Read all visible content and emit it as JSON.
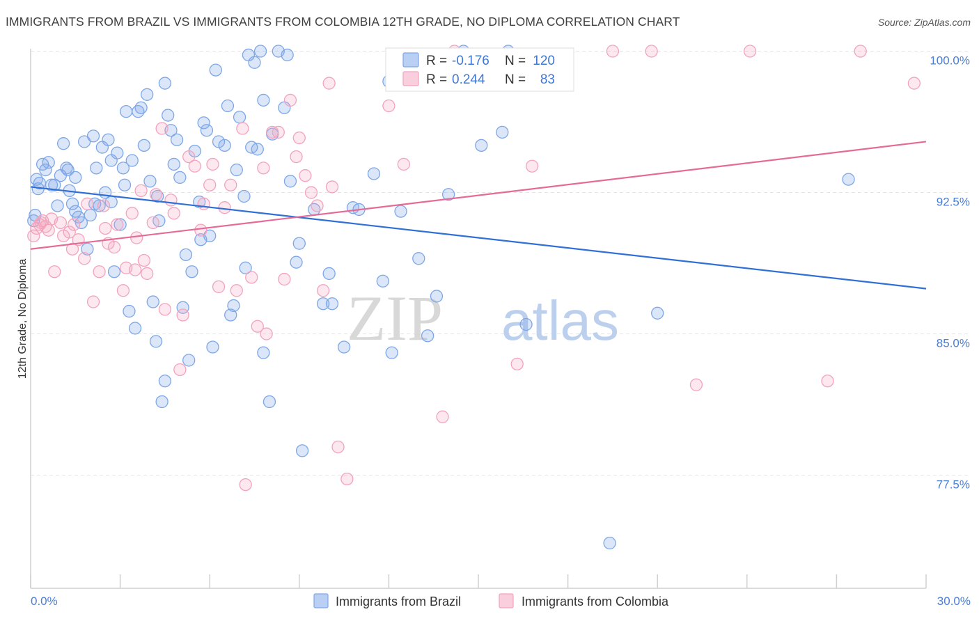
{
  "title": "IMMIGRANTS FROM BRAZIL VS IMMIGRANTS FROM COLOMBIA 12TH GRADE, NO DIPLOMA CORRELATION CHART",
  "source": "Source: ZipAtlas.com",
  "watermark": {
    "zip": "ZIP",
    "atlas": "atlas"
  },
  "legend": {
    "r_label": "R =",
    "n_label": "N =",
    "rows": [
      {
        "r": "-0.176",
        "n": "120",
        "color": "#7da7e8"
      },
      {
        "r": "0.244",
        "n": "83",
        "color": "#f2a3bd"
      }
    ]
  },
  "bottom_legend": [
    {
      "label": "Immigrants from Brazil",
      "color": "#7da7e8"
    },
    {
      "label": "Immigrants from Colombia",
      "color": "#f2a3bd"
    }
  ],
  "chart_data": {
    "type": "scatter",
    "title": "IMMIGRANTS FROM BRAZIL VS IMMIGRANTS FROM COLOMBIA 12TH GRADE, NO DIPLOMA CORRELATION CHART",
    "xlabel": "",
    "ylabel": "12th Grade, No Diploma",
    "xlim": [
      0,
      30
    ],
    "ylim": [
      71.5,
      100.5
    ],
    "x_tick_labels": [
      "0.0%",
      "30.0%"
    ],
    "y_ticks": [
      77.5,
      85.0,
      92.5,
      100.0
    ],
    "y_tick_labels": [
      "77.5%",
      "85.0%",
      "92.5%",
      "100.0%"
    ],
    "grid": true,
    "series": [
      {
        "name": "Immigrants from Brazil",
        "color": "#7da7e8",
        "trend": {
          "x": [
            0,
            30
          ],
          "y": [
            92.8,
            87.4
          ]
        },
        "points": [
          [
            0.1,
            91.0
          ],
          [
            0.2,
            93.2
          ],
          [
            0.3,
            93.0
          ],
          [
            0.4,
            94.0
          ],
          [
            0.5,
            93.7
          ],
          [
            0.6,
            94.1
          ],
          [
            0.7,
            92.9
          ],
          [
            0.8,
            92.9
          ],
          [
            0.9,
            91.8
          ],
          [
            1.0,
            93.4
          ],
          [
            1.1,
            95.1
          ],
          [
            1.2,
            93.8
          ],
          [
            1.3,
            92.6
          ],
          [
            1.4,
            91.9
          ],
          [
            1.5,
            91.5
          ],
          [
            1.5,
            93.3
          ],
          [
            1.6,
            91.2
          ],
          [
            1.7,
            90.9
          ],
          [
            1.8,
            95.2
          ],
          [
            1.9,
            89.5
          ],
          [
            2.0,
            91.3
          ],
          [
            2.1,
            95.5
          ],
          [
            2.2,
            93.8
          ],
          [
            2.3,
            91.8
          ],
          [
            2.4,
            94.9
          ],
          [
            2.5,
            92.5
          ],
          [
            2.6,
            95.3
          ],
          [
            2.7,
            92.0
          ],
          [
            2.7,
            94.2
          ],
          [
            2.8,
            88.3
          ],
          [
            2.9,
            94.6
          ],
          [
            3.0,
            90.8
          ],
          [
            3.1,
            93.8
          ],
          [
            3.2,
            96.8
          ],
          [
            3.3,
            86.2
          ],
          [
            3.4,
            94.2
          ],
          [
            3.5,
            85.3
          ],
          [
            3.6,
            96.8
          ],
          [
            3.7,
            97.0
          ],
          [
            3.8,
            95.0
          ],
          [
            3.9,
            97.7
          ],
          [
            4.0,
            93.1
          ],
          [
            4.1,
            86.7
          ],
          [
            4.2,
            84.6
          ],
          [
            4.3,
            91.0
          ],
          [
            4.4,
            81.4
          ],
          [
            4.5,
            82.5
          ],
          [
            4.5,
            98.3
          ],
          [
            4.6,
            96.6
          ],
          [
            4.7,
            95.8
          ],
          [
            4.8,
            94.0
          ],
          [
            4.9,
            95.3
          ],
          [
            5.0,
            93.3
          ],
          [
            5.1,
            86.4
          ],
          [
            5.2,
            89.2
          ],
          [
            5.3,
            83.6
          ],
          [
            5.4,
            88.3
          ],
          [
            5.5,
            94.7
          ],
          [
            5.7,
            90.0
          ],
          [
            5.8,
            96.2
          ],
          [
            5.9,
            95.8
          ],
          [
            6.0,
            90.2
          ],
          [
            6.1,
            84.3
          ],
          [
            6.2,
            99.0
          ],
          [
            6.3,
            95.2
          ],
          [
            6.5,
            95.0
          ],
          [
            6.6,
            97.1
          ],
          [
            6.7,
            86.0
          ],
          [
            6.8,
            86.5
          ],
          [
            6.9,
            93.7
          ],
          [
            7.0,
            96.5
          ],
          [
            7.2,
            88.5
          ],
          [
            7.3,
            99.8
          ],
          [
            7.4,
            94.9
          ],
          [
            7.5,
            99.4
          ],
          [
            7.6,
            94.8
          ],
          [
            7.7,
            100.0
          ],
          [
            7.8,
            84.0
          ],
          [
            7.8,
            97.4
          ],
          [
            8.0,
            81.4
          ],
          [
            8.1,
            95.6
          ],
          [
            8.3,
            100.0
          ],
          [
            8.5,
            97.0
          ],
          [
            8.6,
            99.8
          ],
          [
            8.7,
            93.1
          ],
          [
            8.9,
            88.8
          ],
          [
            9.0,
            89.8
          ],
          [
            9.1,
            78.8
          ],
          [
            9.5,
            91.6
          ],
          [
            9.8,
            86.6
          ],
          [
            10.0,
            88.2
          ],
          [
            10.1,
            86.6
          ],
          [
            10.5,
            84.3
          ],
          [
            10.8,
            91.7
          ],
          [
            11.0,
            91.6
          ],
          [
            11.5,
            93.5
          ],
          [
            11.8,
            87.8
          ],
          [
            12.0,
            98.4
          ],
          [
            12.1,
            84.0
          ],
          [
            12.4,
            91.5
          ],
          [
            13.0,
            89.0
          ],
          [
            13.3,
            84.9
          ],
          [
            13.6,
            87.0
          ],
          [
            14.0,
            92.4
          ],
          [
            14.5,
            100.0
          ],
          [
            15.1,
            95.0
          ],
          [
            15.8,
            95.7
          ],
          [
            16.0,
            100.0
          ],
          [
            16.6,
            85.5
          ],
          [
            19.4,
            73.9
          ],
          [
            21.0,
            86.1
          ],
          [
            27.4,
            93.2
          ],
          [
            0.15,
            91.3
          ],
          [
            0.25,
            92.7
          ],
          [
            1.25,
            93.7
          ],
          [
            2.15,
            91.9
          ],
          [
            3.15,
            92.9
          ],
          [
            4.25,
            92.3
          ],
          [
            5.65,
            92.0
          ],
          [
            7.15,
            92.3
          ]
        ]
      },
      {
        "name": "Immigrants from Colombia",
        "color": "#f2a3bd",
        "trend": {
          "x": [
            0,
            30
          ],
          "y": [
            89.5,
            95.2
          ]
        },
        "points": [
          [
            0.1,
            90.2
          ],
          [
            0.2,
            90.6
          ],
          [
            0.3,
            90.8
          ],
          [
            0.4,
            91.0
          ],
          [
            0.5,
            90.7
          ],
          [
            0.6,
            90.5
          ],
          [
            0.7,
            91.1
          ],
          [
            0.8,
            88.3
          ],
          [
            1.0,
            90.9
          ],
          [
            1.1,
            90.2
          ],
          [
            1.3,
            90.4
          ],
          [
            1.4,
            89.5
          ],
          [
            1.6,
            90.0
          ],
          [
            1.8,
            89.0
          ],
          [
            1.9,
            91.9
          ],
          [
            2.1,
            86.7
          ],
          [
            2.3,
            88.3
          ],
          [
            2.5,
            90.6
          ],
          [
            2.6,
            89.8
          ],
          [
            2.8,
            89.6
          ],
          [
            2.9,
            90.8
          ],
          [
            3.1,
            87.3
          ],
          [
            3.2,
            88.5
          ],
          [
            3.4,
            91.4
          ],
          [
            3.5,
            88.4
          ],
          [
            3.7,
            92.6
          ],
          [
            3.8,
            88.9
          ],
          [
            3.9,
            88.2
          ],
          [
            4.1,
            90.9
          ],
          [
            4.2,
            92.4
          ],
          [
            4.4,
            95.9
          ],
          [
            4.5,
            86.3
          ],
          [
            4.7,
            92.1
          ],
          [
            4.8,
            91.4
          ],
          [
            5.0,
            83.1
          ],
          [
            5.1,
            86.0
          ],
          [
            5.3,
            94.4
          ],
          [
            5.5,
            93.9
          ],
          [
            5.7,
            90.5
          ],
          [
            5.8,
            91.9
          ],
          [
            6.0,
            92.9
          ],
          [
            6.1,
            94.0
          ],
          [
            6.3,
            87.5
          ],
          [
            6.5,
            91.7
          ],
          [
            6.7,
            92.9
          ],
          [
            6.9,
            87.3
          ],
          [
            7.1,
            95.9
          ],
          [
            7.2,
            77.0
          ],
          [
            7.4,
            88.0
          ],
          [
            7.6,
            85.4
          ],
          [
            7.8,
            93.8
          ],
          [
            7.9,
            85.0
          ],
          [
            8.1,
            95.7
          ],
          [
            8.3,
            95.7
          ],
          [
            8.5,
            87.9
          ],
          [
            8.7,
            97.4
          ],
          [
            8.9,
            94.4
          ],
          [
            9.0,
            95.4
          ],
          [
            9.2,
            93.4
          ],
          [
            9.4,
            92.5
          ],
          [
            9.6,
            91.8
          ],
          [
            9.8,
            87.3
          ],
          [
            10.0,
            98.3
          ],
          [
            10.1,
            92.8
          ],
          [
            10.3,
            79.0
          ],
          [
            10.6,
            77.3
          ],
          [
            12.0,
            97.1
          ],
          [
            12.5,
            94.0
          ],
          [
            13.8,
            80.6
          ],
          [
            14.2,
            100.0
          ],
          [
            16.3,
            83.4
          ],
          [
            16.8,
            93.9
          ],
          [
            19.5,
            100.0
          ],
          [
            20.8,
            100.0
          ],
          [
            22.3,
            82.3
          ],
          [
            24.1,
            100.0
          ],
          [
            26.7,
            82.5
          ],
          [
            27.8,
            100.0
          ],
          [
            29.6,
            98.3
          ],
          [
            0.35,
            90.9
          ],
          [
            1.45,
            90.8
          ],
          [
            2.45,
            91.8
          ],
          [
            3.55,
            90.1
          ]
        ]
      }
    ]
  }
}
